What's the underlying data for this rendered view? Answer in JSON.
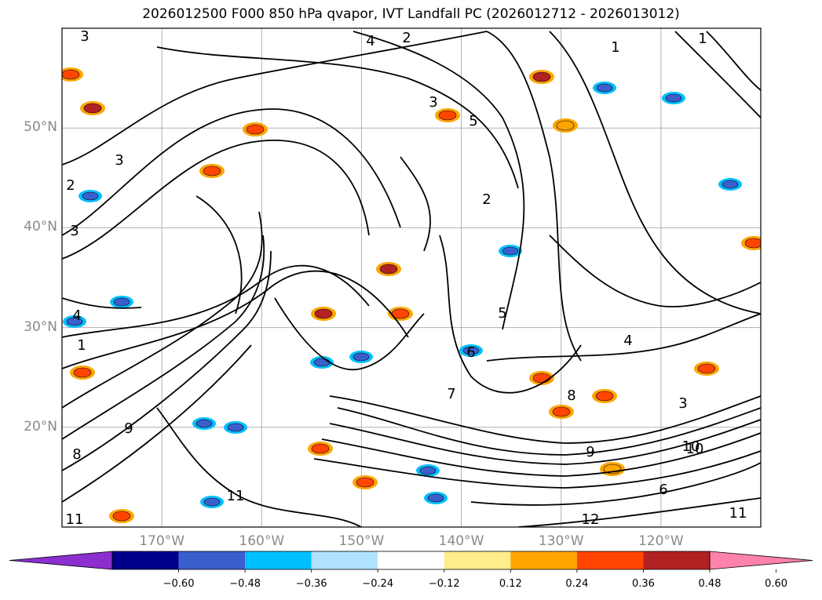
{
  "title": "2026012500 F000 850 hPa qvapor, IVT Landfall PC (2026012712 - 2026013012)",
  "map": {
    "extent_lon": [
      -180,
      -110
    ],
    "extent_lat": [
      10,
      60
    ],
    "lat_labels": [
      {
        "lat": 50,
        "text": "50°N"
      },
      {
        "lat": 40,
        "text": "40°N"
      },
      {
        "lat": 30,
        "text": "30°N"
      },
      {
        "lat": 20,
        "text": "20°N"
      }
    ],
    "lon_labels": [
      {
        "lon": -170,
        "text": "170°W"
      },
      {
        "lon": -160,
        "text": "160°W"
      },
      {
        "lon": -150,
        "text": "150°W"
      },
      {
        "lon": -140,
        "text": "140°W"
      },
      {
        "lon": -130,
        "text": "130°W"
      },
      {
        "lon": -120,
        "text": "120°W"
      }
    ],
    "gridline_color": "#b0b0b0",
    "contour_color": "#000000",
    "contour_labels": [
      "3",
      "2",
      "4",
      "1",
      "5",
      "3",
      "3",
      "3",
      "4",
      "1",
      "9",
      "8",
      "11",
      "11",
      "6",
      "10",
      "12",
      "11",
      "10",
      "9",
      "8",
      "7",
      "6",
      "5",
      "2",
      "3",
      "4",
      "2",
      "1"
    ]
  },
  "colorbar": {
    "ticks": [
      "−0.60",
      "−0.48",
      "−0.36",
      "−0.24",
      "−0.12",
      "0.12",
      "0.24",
      "0.36",
      "0.48",
      "0.60"
    ],
    "bin_colors": [
      "#8b2fcf",
      "#00008b",
      "#3a5fcd",
      "#00bfff",
      "#b0e2ff",
      "#ffffff",
      "#ffec8b",
      "#ffa500",
      "#ff4500",
      "#b22222",
      "#ff82ab"
    ]
  }
}
